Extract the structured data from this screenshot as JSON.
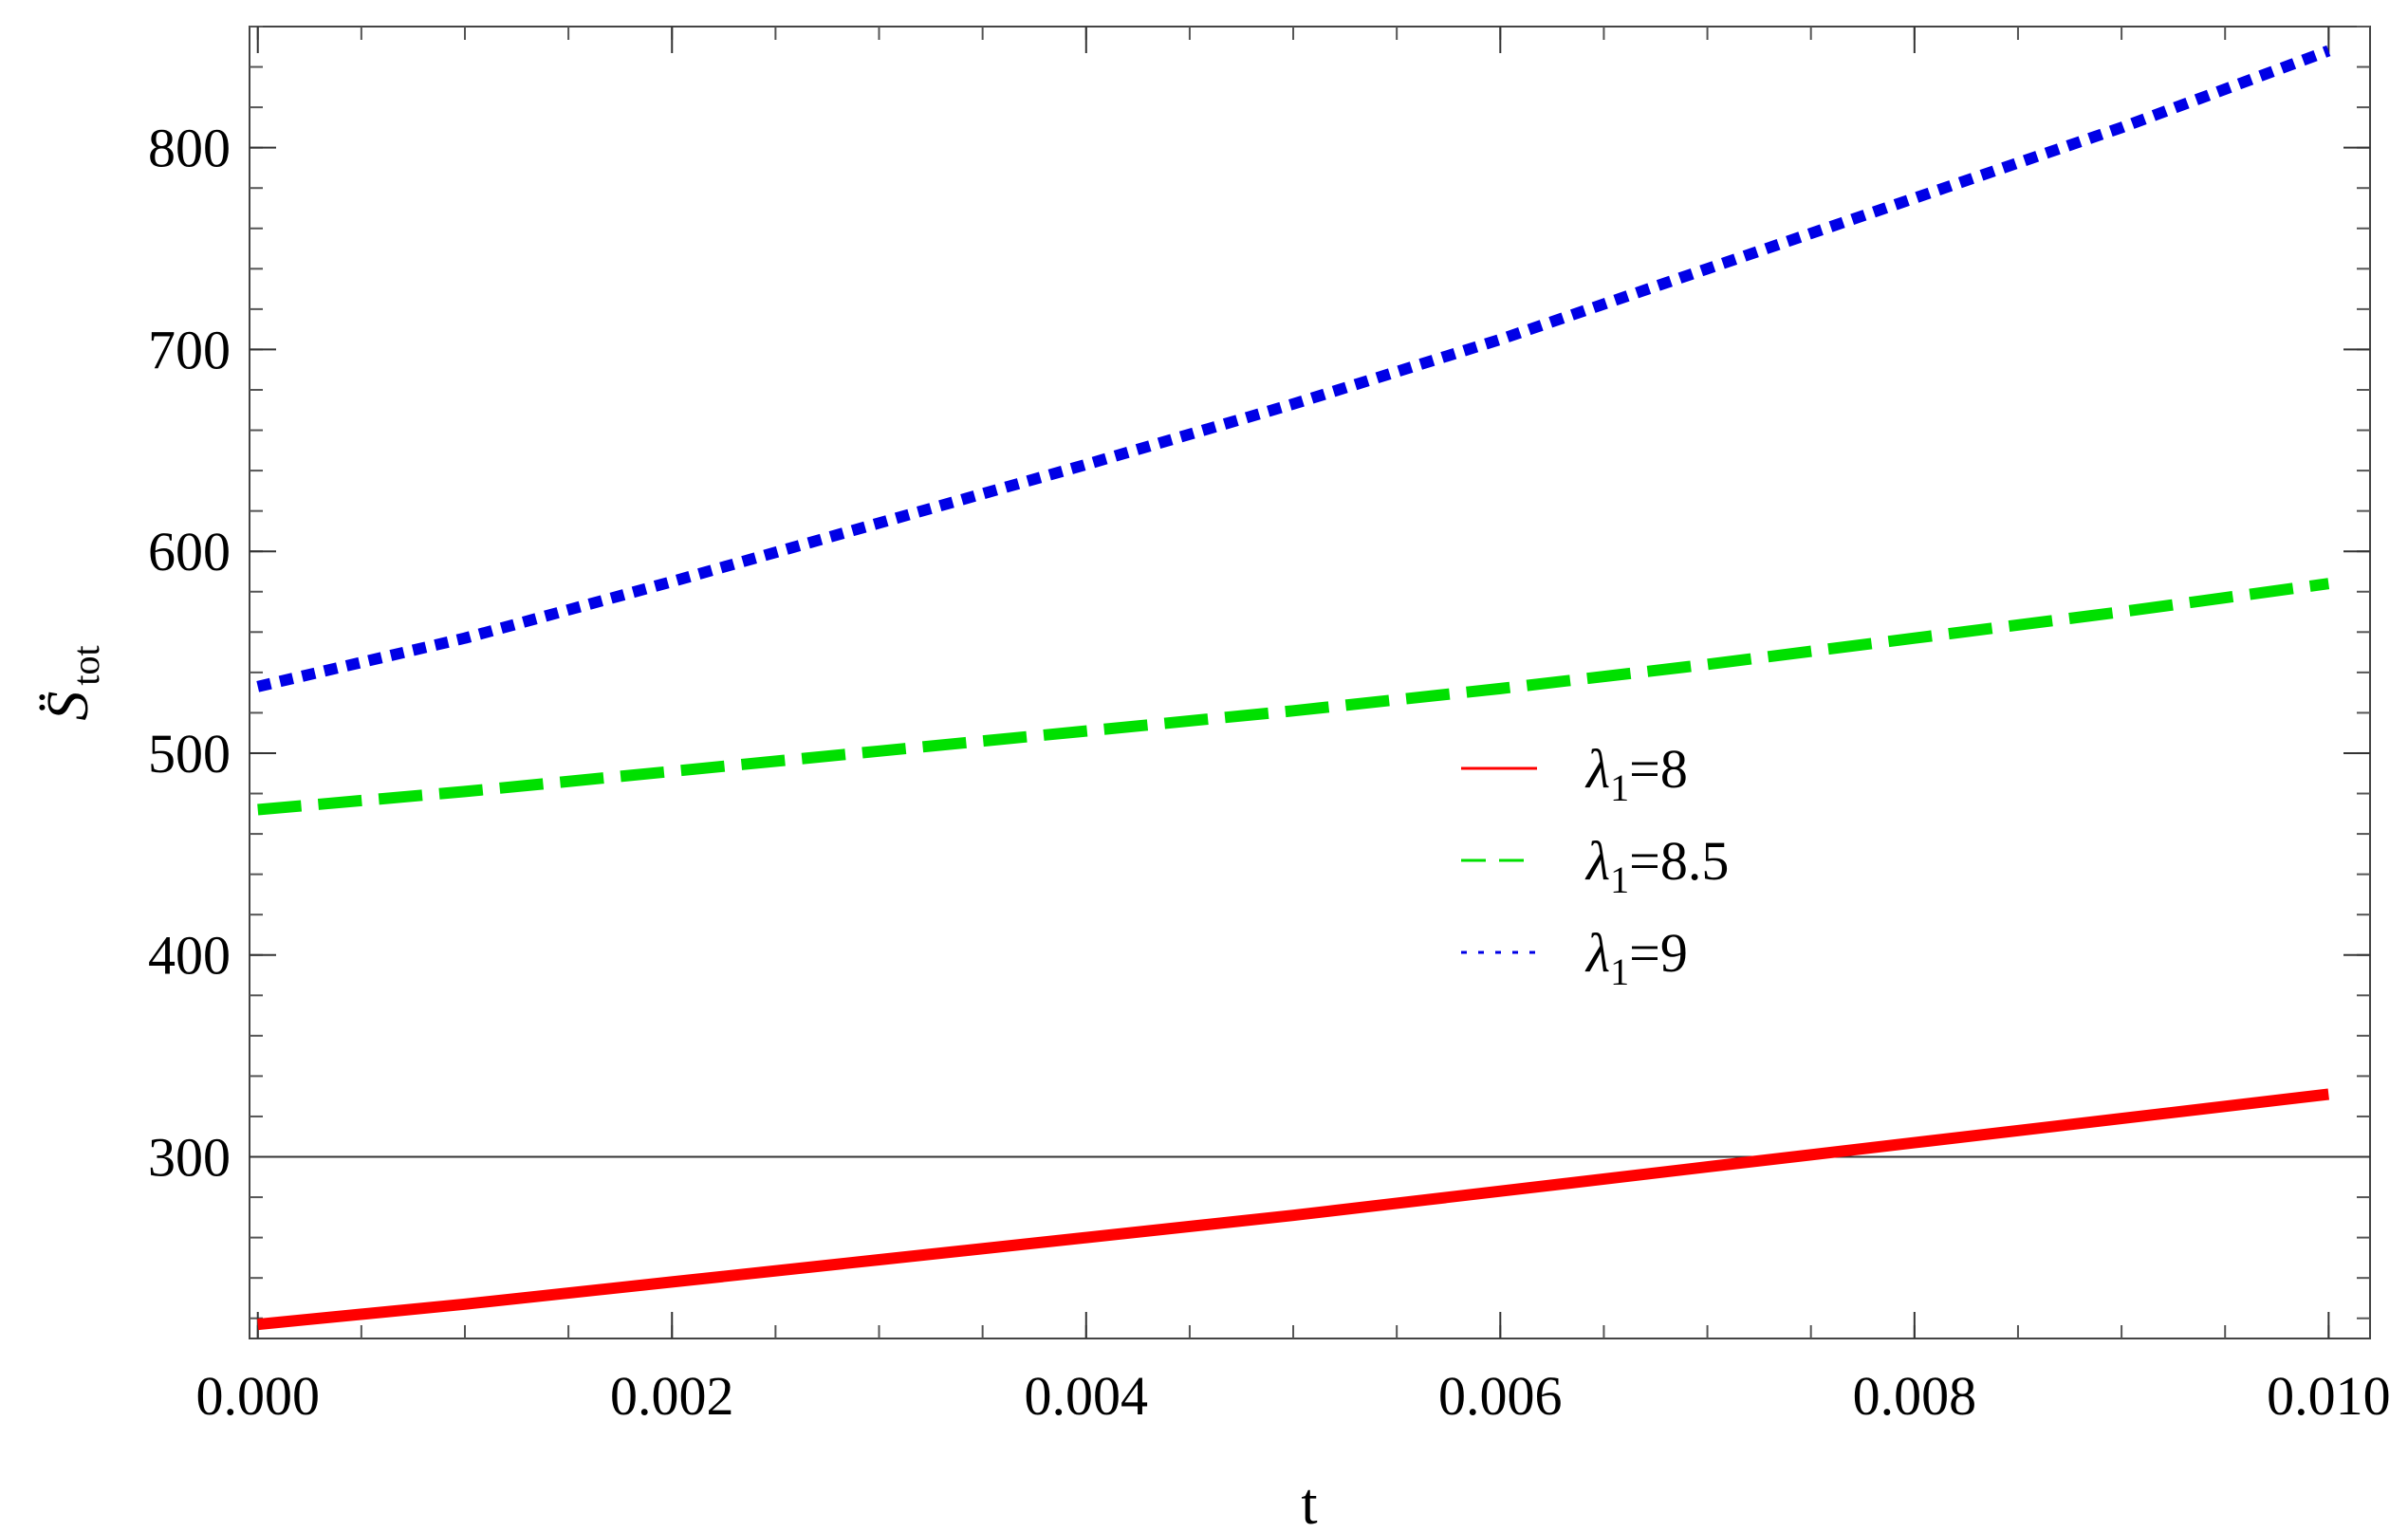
{
  "chart_data": {
    "type": "line",
    "title": "",
    "xlabel": "t",
    "ylabel_main": "S̈",
    "ylabel_sub": "tot",
    "xlim": [
      -4e-05,
      0.0102
    ],
    "ylim": [
      210,
      860
    ],
    "x_ticks": [
      0.0,
      0.002,
      0.004,
      0.006,
      0.008,
      0.01
    ],
    "x_tick_labels": [
      "0.000",
      "0.002",
      "0.004",
      "0.006",
      "0.008",
      "0.010"
    ],
    "y_ticks": [
      300,
      400,
      500,
      600,
      700,
      800
    ],
    "y_tick_labels": [
      "300",
      "400",
      "500",
      "600",
      "700",
      "800"
    ],
    "x_minor_step": 0.0005,
    "y_minor_step": 20,
    "reference_line_y": 300,
    "grid": false,
    "legend_position": "center-right",
    "series": [
      {
        "name_symbol": "λ",
        "name_sub": "1",
        "name_value": "=8",
        "color": "#ff0000",
        "style": "solid",
        "x": [
          0.0,
          0.001,
          0.002,
          0.003,
          0.004,
          0.005,
          0.006,
          0.007,
          0.008,
          0.009,
          0.01
        ],
        "values": [
          217,
          227,
          238,
          249,
          260,
          271,
          283,
          295,
          307,
          319,
          331
        ]
      },
      {
        "name_symbol": "λ",
        "name_sub": "1",
        "name_value": "=8.5",
        "color": "#00e000",
        "style": "dashed",
        "x": [
          0.0,
          0.001,
          0.002,
          0.003,
          0.004,
          0.005,
          0.006,
          0.007,
          0.008,
          0.009,
          0.01
        ],
        "values": [
          472,
          481,
          491,
          501,
          511,
          521,
          532,
          544,
          557,
          570,
          584
        ]
      },
      {
        "name_symbol": "λ",
        "name_sub": "1",
        "name_value": "=9",
        "color": "#0000e6",
        "style": "dotted",
        "x": [
          0.0,
          0.001,
          0.002,
          0.003,
          0.004,
          0.005,
          0.006,
          0.007,
          0.008,
          0.009,
          0.01
        ],
        "values": [
          533,
          557,
          585,
          614,
          643,
          673,
          705,
          740,
          775,
          810,
          848
        ]
      }
    ]
  }
}
